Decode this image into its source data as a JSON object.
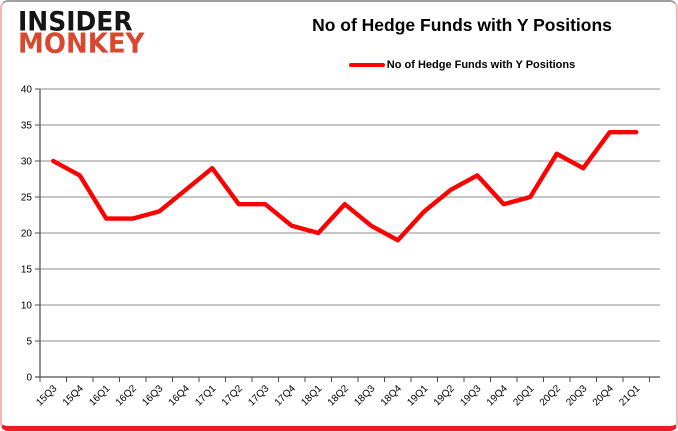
{
  "brand": {
    "line1": "INSIDER",
    "line2": "MONKEY",
    "line1_color": "#151515",
    "line2_color": "#d9472f"
  },
  "header": {
    "title": "No of Hedge Funds with Y Positions"
  },
  "legend": {
    "label": "No of Hedge Funds with Y Positions",
    "color": "#fe0000"
  },
  "chart_data": {
    "type": "line",
    "title": "No of Hedge Funds with Y Positions",
    "categories": [
      "15Q3",
      "15Q4",
      "16Q1",
      "16Q2",
      "16Q3",
      "16Q4",
      "17Q1",
      "17Q2",
      "17Q3",
      "17Q4",
      "18Q1",
      "18Q2",
      "18Q3",
      "18Q4",
      "19Q1",
      "19Q2",
      "19Q3",
      "19Q4",
      "20Q1",
      "20Q2",
      "20Q3",
      "20Q4",
      "21Q1"
    ],
    "series": [
      {
        "name": "No of Hedge Funds with Y Positions",
        "color": "#fe0000",
        "values": [
          30,
          28,
          22,
          22,
          23,
          26,
          29,
          24,
          24,
          21,
          20,
          24,
          21,
          19,
          23,
          26,
          28,
          24,
          25,
          31,
          29,
          34,
          34
        ]
      }
    ],
    "xlabel": "",
    "ylabel": "",
    "ylim": [
      0,
      40
    ],
    "ytick_step": 5,
    "grid": true,
    "gridline_color": "#8e8e8e",
    "axis_color": "#4d4d4d",
    "legend_position": "top"
  }
}
